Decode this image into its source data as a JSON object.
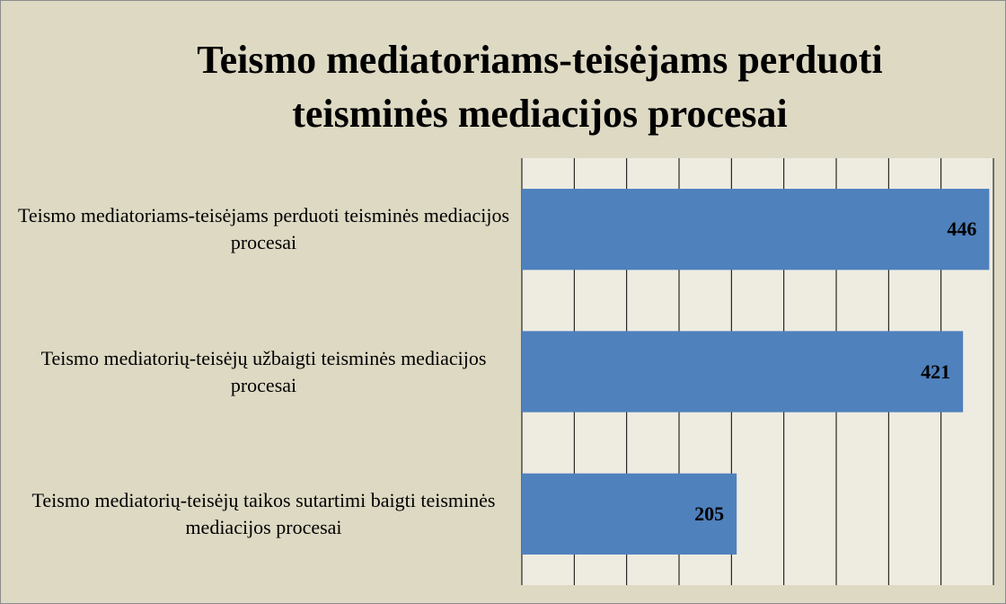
{
  "chart_data": {
    "type": "bar",
    "orientation": "horizontal",
    "title": "Teismo mediatoriams-teisėjams perduoti teisminės mediacijos procesai",
    "categories": [
      "Teismo mediatoriams-teisėjams perduoti teisminės mediacijos procesai",
      "Teismo mediatorių-teisėjų užbaigti teisminės mediacijos procesai",
      "Teismo mediatorių-teisėjų taikos sutartimi baigti teisminės mediacijos procesai"
    ],
    "values": [
      446,
      421,
      205
    ],
    "color": "#4f81bd",
    "xlim": [
      0,
      450
    ],
    "xticks": [
      0,
      50,
      100,
      150,
      200,
      250,
      300,
      350,
      400,
      450
    ],
    "grid": true
  }
}
